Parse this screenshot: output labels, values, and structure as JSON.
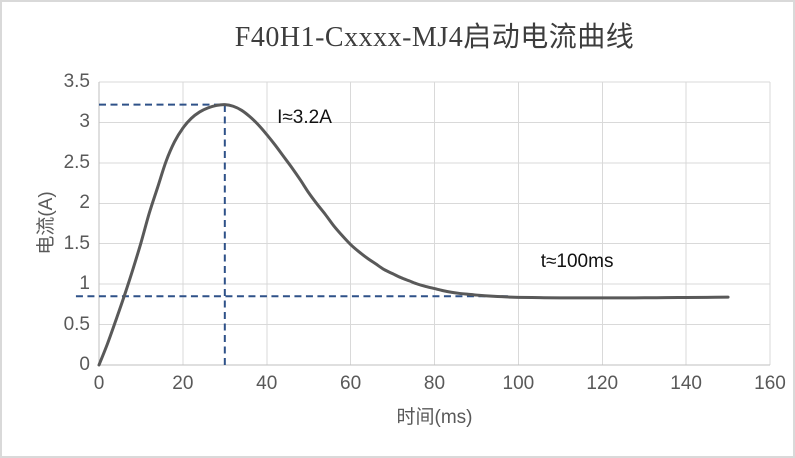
{
  "window": {
    "background": "#ffffff",
    "border_color": "#d9d9d9"
  },
  "chart_data": {
    "type": "line",
    "title": "F40H1-Cxxxx-MJ4启动电流曲线",
    "xlabel": "时间(ms)",
    "ylabel": "电流(A)",
    "xlim": [
      0,
      160
    ],
    "ylim": [
      0,
      3.5
    ],
    "grid": true,
    "legend": "none",
    "x_ticks": {
      "values": [
        0,
        20,
        40,
        60,
        80,
        100,
        120,
        140,
        160
      ],
      "labels": [
        "0",
        "20",
        "40",
        "60",
        "80",
        "100",
        "120",
        "140",
        "160"
      ]
    },
    "y_ticks": {
      "values": [
        0,
        0.5,
        1,
        1.5,
        2,
        2.5,
        3,
        3.5
      ],
      "labels": [
        "0",
        "0.5",
        "1",
        "1.5",
        "2",
        "2.5",
        "3",
        "3.5"
      ]
    },
    "series": [
      {
        "name": "startup-current",
        "color": "#595959",
        "points": [
          [
            0,
            0
          ],
          [
            2,
            0.26
          ],
          [
            4,
            0.55
          ],
          [
            6,
            0.85
          ],
          [
            8,
            1.17
          ],
          [
            10,
            1.51
          ],
          [
            12,
            1.88
          ],
          [
            14,
            2.2
          ],
          [
            16,
            2.52
          ],
          [
            18,
            2.76
          ],
          [
            20,
            2.93
          ],
          [
            22,
            3.05
          ],
          [
            24,
            3.13
          ],
          [
            26,
            3.18
          ],
          [
            28,
            3.21
          ],
          [
            30,
            3.22
          ],
          [
            32,
            3.2
          ],
          [
            34,
            3.15
          ],
          [
            36,
            3.07
          ],
          [
            38,
            2.97
          ],
          [
            40,
            2.85
          ],
          [
            42,
            2.72
          ],
          [
            44,
            2.58
          ],
          [
            46,
            2.44
          ],
          [
            48,
            2.29
          ],
          [
            50,
            2.13
          ],
          [
            52,
            1.99
          ],
          [
            54,
            1.86
          ],
          [
            56,
            1.72
          ],
          [
            58,
            1.6
          ],
          [
            60,
            1.49
          ],
          [
            62,
            1.4
          ],
          [
            64,
            1.32
          ],
          [
            66,
            1.25
          ],
          [
            68,
            1.18
          ],
          [
            70,
            1.13
          ],
          [
            72,
            1.08
          ],
          [
            74,
            1.04
          ],
          [
            76,
            1.0
          ],
          [
            78,
            0.97
          ],
          [
            80,
            0.945
          ],
          [
            82,
            0.92
          ],
          [
            84,
            0.9
          ],
          [
            86,
            0.885
          ],
          [
            88,
            0.875
          ],
          [
            90,
            0.865
          ],
          [
            92,
            0.857
          ],
          [
            94,
            0.85
          ],
          [
            96,
            0.845
          ],
          [
            98,
            0.84
          ],
          [
            100,
            0.837
          ],
          [
            105,
            0.833
          ],
          [
            110,
            0.83
          ],
          [
            115,
            0.83
          ],
          [
            120,
            0.83
          ],
          [
            125,
            0.83
          ],
          [
            130,
            0.831
          ],
          [
            135,
            0.833
          ],
          [
            140,
            0.835
          ],
          [
            145,
            0.837
          ],
          [
            150,
            0.84
          ]
        ]
      }
    ],
    "reference_lines": [
      {
        "orientation": "horizontal",
        "y": 3.22,
        "x_from": 0,
        "x_to": 30,
        "style": "dashed",
        "color": "#2e5188"
      },
      {
        "orientation": "vertical",
        "x": 30,
        "y_from": 0,
        "y_to": 3.22,
        "style": "dashed",
        "color": "#2e5188"
      },
      {
        "orientation": "horizontal",
        "y": 0.85,
        "x_from": -5.5,
        "x_to": 97.5,
        "style": "dashed",
        "color": "#2e5188"
      }
    ],
    "annotations": [
      {
        "name": "peak-current-label",
        "text": "I≈3.2A",
        "x": 49,
        "y": 3.05
      },
      {
        "name": "settle-time-label",
        "text": "t≈100ms",
        "x": 114,
        "y": 1.27
      }
    ],
    "colors": {
      "curve": "#595959",
      "gridline": "#d9d9d9",
      "axis_line": "#bfbfbf",
      "tick_label": "#595959",
      "axis_title": "#595959",
      "title": "#3d3d3d",
      "annotation": "#111111",
      "reference_line": "#2e5188"
    }
  }
}
